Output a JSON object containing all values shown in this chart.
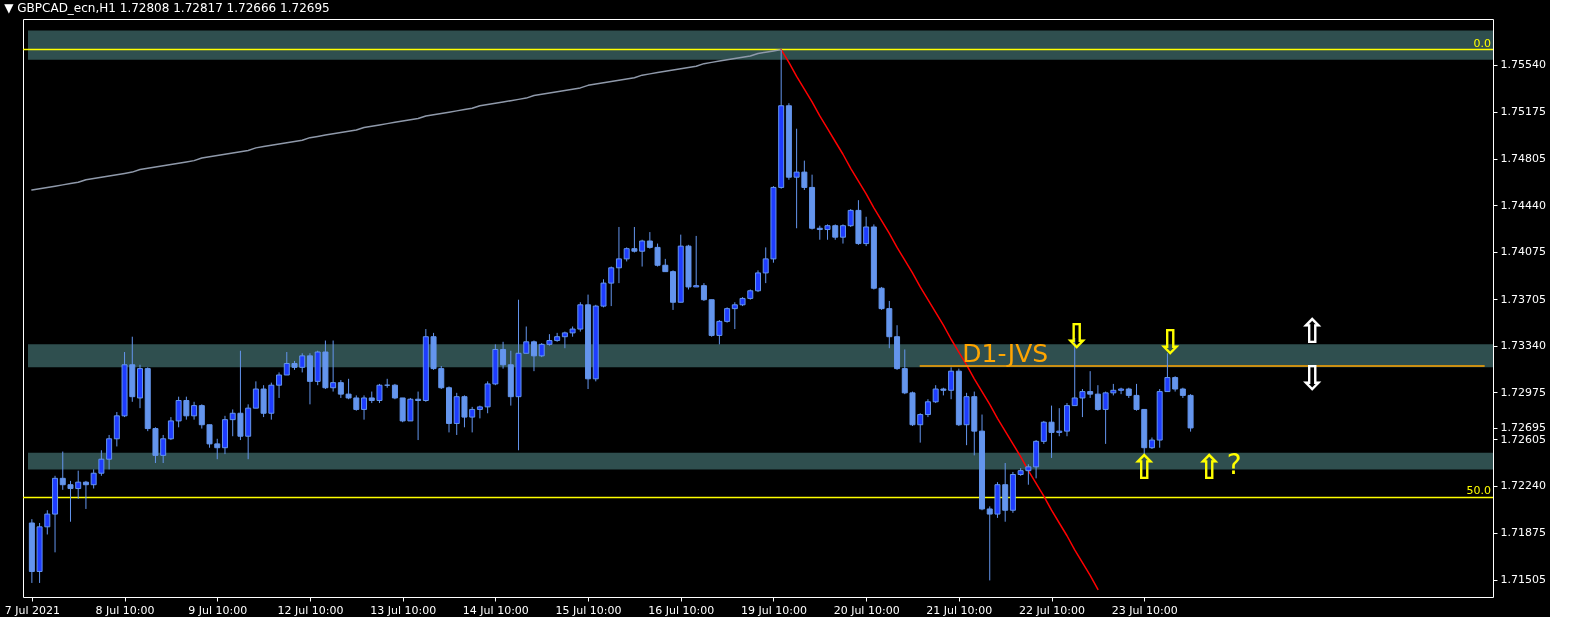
{
  "chart_data": {
    "type": "candlestick",
    "title": "▼ GBPCAD_ecn,H1 1.72808 1.72817 1.72666 1.72695",
    "color": "#6495ed",
    "categories": [
      "7 Jul 2021",
      null,
      null,
      null,
      null,
      null,
      null,
      null,
      null,
      null,
      null,
      null,
      "8 Jul 10:00",
      null,
      null,
      null,
      null,
      null,
      null,
      null,
      null,
      null,
      null,
      null,
      "9 Jul 10:00",
      null,
      null,
      null,
      null,
      null,
      null,
      null,
      null,
      null,
      null,
      null,
      "12 Jul 10:00",
      null,
      null,
      null,
      null,
      null,
      null,
      null,
      null,
      null,
      null,
      null,
      "13 Jul 10:00",
      null,
      null,
      null,
      null,
      null,
      null,
      null,
      null,
      null,
      null,
      null,
      "14 Jul 10:00",
      null,
      null,
      null,
      null,
      null,
      null,
      null,
      null,
      null,
      null,
      null,
      "15 Jul 10:00",
      null,
      null,
      null,
      null,
      null,
      null,
      null,
      null,
      null,
      null,
      null,
      "16 Jul 10:00",
      null,
      null,
      null,
      null,
      null,
      null,
      null,
      null,
      null,
      null,
      null,
      "19 Jul 10:00",
      null,
      null,
      null,
      null,
      null,
      null,
      null,
      null,
      null,
      null,
      null,
      "20 Jul 10:00",
      null,
      null,
      null,
      null,
      null,
      null,
      null,
      null,
      null,
      null,
      null,
      "21 Jul 10:00",
      null,
      null,
      null,
      null,
      null,
      null,
      null,
      null,
      null,
      null,
      null,
      "22 Jul 10:00",
      null,
      null,
      null,
      null,
      null,
      null,
      null,
      null,
      null,
      null,
      null,
      "23 Jul 10:00",
      null,
      null,
      null,
      null,
      null,
      null,
      null,
      null,
      null,
      null,
      null,
      null,
      null,
      null,
      null,
      null,
      null,
      null,
      null,
      null,
      null,
      null,
      null,
      null,
      null,
      null,
      null,
      null,
      null,
      null,
      null,
      null,
      null,
      null,
      null,
      null,
      null,
      null,
      null,
      null,
      null,
      null,
      null,
      null
    ],
    "ohlc": [
      [
        1.7195,
        1.7198,
        1.7148,
        1.7157
      ],
      [
        1.7157,
        1.7195,
        1.7148,
        1.7192
      ],
      [
        1.7192,
        1.7205,
        1.7186,
        1.7202
      ],
      [
        1.7202,
        1.7232,
        1.7172,
        1.723
      ],
      [
        1.723,
        1.7251,
        1.7221,
        1.7225
      ],
      [
        1.7225,
        1.7228,
        1.7196,
        1.7222
      ],
      [
        1.7222,
        1.7236,
        1.7214,
        1.7227
      ],
      [
        1.7227,
        1.7228,
        1.7206,
        1.7225
      ],
      [
        1.7225,
        1.7237,
        1.7222,
        1.7234
      ],
      [
        1.7234,
        1.7252,
        1.7232,
        1.7245
      ],
      [
        1.7245,
        1.7264,
        1.7237,
        1.7261
      ],
      [
        1.7261,
        1.7282,
        1.7255,
        1.7279
      ],
      [
        1.7279,
        1.7329,
        1.7278,
        1.7319
      ],
      [
        1.7319,
        1.7341,
        1.729,
        1.7294
      ],
      [
        1.7293,
        1.7319,
        1.7285,
        1.7316
      ],
      [
        1.7316,
        1.7317,
        1.7267,
        1.7269
      ],
      [
        1.7269,
        1.727,
        1.7242,
        1.7248
      ],
      [
        1.7248,
        1.7264,
        1.7242,
        1.7261
      ],
      [
        1.7261,
        1.7278,
        1.726,
        1.7275
      ],
      [
        1.7275,
        1.7294,
        1.727,
        1.7291
      ],
      [
        1.7291,
        1.7294,
        1.7276,
        1.7279
      ],
      [
        1.7279,
        1.729,
        1.7276,
        1.7287
      ],
      [
        1.7287,
        1.7288,
        1.7269,
        1.7272
      ],
      [
        1.7272,
        1.7272,
        1.7254,
        1.7257
      ],
      [
        1.7257,
        1.7261,
        1.7245,
        1.7254
      ],
      [
        1.7254,
        1.7279,
        1.7249,
        1.7276
      ],
      [
        1.7276,
        1.7284,
        1.7263,
        1.7281
      ],
      [
        1.7281,
        1.733,
        1.726,
        1.7263
      ],
      [
        1.7263,
        1.7288,
        1.7245,
        1.7285
      ],
      [
        1.7285,
        1.7306,
        1.7285,
        1.73
      ],
      [
        1.73,
        1.7303,
        1.7278,
        1.7281
      ],
      [
        1.7281,
        1.7305,
        1.7276,
        1.7303
      ],
      [
        1.7303,
        1.7313,
        1.7293,
        1.7311
      ],
      [
        1.7311,
        1.7329,
        1.7311,
        1.732
      ],
      [
        1.732,
        1.7322,
        1.7315,
        1.7317
      ],
      [
        1.7317,
        1.7328,
        1.7313,
        1.7326
      ],
      [
        1.7326,
        1.7328,
        1.7288,
        1.7306
      ],
      [
        1.7306,
        1.733,
        1.7303,
        1.7329
      ],
      [
        1.7329,
        1.7338,
        1.73,
        1.7301
      ],
      [
        1.7301,
        1.7338,
        1.7298,
        1.7305
      ],
      [
        1.7305,
        1.7307,
        1.7293,
        1.7296
      ],
      [
        1.7296,
        1.7308,
        1.7292,
        1.7293
      ],
      [
        1.7293,
        1.7295,
        1.7283,
        1.7284
      ],
      [
        1.7284,
        1.7295,
        1.7276,
        1.7293
      ],
      [
        1.7293,
        1.7298,
        1.7289,
        1.7291
      ],
      [
        1.7291,
        1.7304,
        1.7289,
        1.7303
      ],
      [
        1.7303,
        1.7308,
        1.7301,
        1.7303
      ],
      [
        1.7303,
        1.7304,
        1.7292,
        1.7293
      ],
      [
        1.7293,
        1.7293,
        1.7274,
        1.7275
      ],
      [
        1.7275,
        1.7293,
        1.7275,
        1.7292
      ],
      [
        1.7292,
        1.7298,
        1.726,
        1.7291
      ],
      [
        1.7291,
        1.7347,
        1.729,
        1.7341
      ],
      [
        1.7341,
        1.7344,
        1.7315,
        1.7316
      ],
      [
        1.7316,
        1.7318,
        1.73,
        1.7301
      ],
      [
        1.7301,
        1.7302,
        1.7266,
        1.7273
      ],
      [
        1.7273,
        1.7297,
        1.7264,
        1.7294
      ],
      [
        1.7294,
        1.7295,
        1.727,
        1.7278
      ],
      [
        1.7278,
        1.7286,
        1.7266,
        1.7284
      ],
      [
        1.7284,
        1.7287,
        1.7277,
        1.7286
      ],
      [
        1.7286,
        1.7306,
        1.7281,
        1.7304
      ],
      [
        1.7304,
        1.7335,
        1.7303,
        1.7331
      ],
      [
        1.7331,
        1.7337,
        1.7316,
        1.7319
      ],
      [
        1.7319,
        1.733,
        1.7287,
        1.7294
      ],
      [
        1.7294,
        1.737,
        1.7252,
        1.7328
      ],
      [
        1.7328,
        1.7349,
        1.7328,
        1.7337
      ],
      [
        1.7337,
        1.7338,
        1.7314,
        1.7326
      ],
      [
        1.7326,
        1.7336,
        1.7325,
        1.7335
      ],
      [
        1.7335,
        1.7343,
        1.7334,
        1.7338
      ],
      [
        1.7338,
        1.7344,
        1.7337,
        1.7341
      ],
      [
        1.7341,
        1.7345,
        1.7332,
        1.7344
      ],
      [
        1.7344,
        1.7349,
        1.7341,
        1.7347
      ],
      [
        1.7347,
        1.7368,
        1.7345,
        1.7366
      ],
      [
        1.7366,
        1.7374,
        1.73,
        1.7308
      ],
      [
        1.7308,
        1.7366,
        1.7306,
        1.7365
      ],
      [
        1.7365,
        1.7386,
        1.7364,
        1.7383
      ],
      [
        1.7383,
        1.7396,
        1.7365,
        1.7395
      ],
      [
        1.7395,
        1.7427,
        1.7383,
        1.7402
      ],
      [
        1.7402,
        1.7411,
        1.74,
        1.741
      ],
      [
        1.741,
        1.7427,
        1.7407,
        1.7408
      ],
      [
        1.7408,
        1.7417,
        1.7396,
        1.7416
      ],
      [
        1.7416,
        1.7423,
        1.741,
        1.7411
      ],
      [
        1.7411,
        1.7414,
        1.7396,
        1.7397
      ],
      [
        1.7397,
        1.7402,
        1.7392,
        1.7392
      ],
      [
        1.7392,
        1.7393,
        1.7362,
        1.7368
      ],
      [
        1.7368,
        1.7421,
        1.7368,
        1.7412
      ],
      [
        1.7412,
        1.7413,
        1.7378,
        1.738
      ],
      [
        1.738,
        1.742,
        1.738,
        1.7381
      ],
      [
        1.7381,
        1.7383,
        1.7369,
        1.737
      ],
      [
        1.737,
        1.737,
        1.7341,
        1.7342
      ],
      [
        1.7342,
        1.7354,
        1.7335,
        1.7353
      ],
      [
        1.7353,
        1.7364,
        1.7352,
        1.7363
      ],
      [
        1.7363,
        1.7368,
        1.7347,
        1.7366
      ],
      [
        1.7366,
        1.7372,
        1.7365,
        1.7371
      ],
      [
        1.7371,
        1.7378,
        1.737,
        1.7377
      ],
      [
        1.7377,
        1.7393,
        1.7376,
        1.7391
      ],
      [
        1.7391,
        1.7411,
        1.7383,
        1.7402
      ],
      [
        1.7402,
        1.7459,
        1.7399,
        1.7458
      ],
      [
        1.7458,
        1.7566,
        1.7457,
        1.7522
      ],
      [
        1.7522,
        1.7524,
        1.7464,
        1.7466
      ],
      [
        1.7466,
        1.7504,
        1.7426,
        1.747
      ],
      [
        1.747,
        1.7479,
        1.7456,
        1.7458
      ],
      [
        1.7458,
        1.7468,
        1.7425,
        1.7426
      ],
      [
        1.7426,
        1.7428,
        1.7417,
        1.7425
      ],
      [
        1.7425,
        1.7429,
        1.7417,
        1.7428
      ],
      [
        1.7428,
        1.7429,
        1.7417,
        1.7419
      ],
      [
        1.7419,
        1.7429,
        1.7414,
        1.7428
      ],
      [
        1.7428,
        1.7441,
        1.7427,
        1.744
      ],
      [
        1.744,
        1.7448,
        1.7413,
        1.7414
      ],
      [
        1.7414,
        1.7435,
        1.7412,
        1.7427
      ],
      [
        1.7427,
        1.7429,
        1.7378,
        1.7379
      ],
      [
        1.7379,
        1.738,
        1.7362,
        1.7363
      ],
      [
        1.7363,
        1.7369,
        1.7332,
        1.7341
      ],
      [
        1.7341,
        1.735,
        1.7315,
        1.7316
      ],
      [
        1.7316,
        1.7331,
        1.7296,
        1.7297
      ],
      [
        1.7297,
        1.7298,
        1.7271,
        1.7272
      ],
      [
        1.7272,
        1.7281,
        1.7258,
        1.728
      ],
      [
        1.728,
        1.7292,
        1.7278,
        1.729
      ],
      [
        1.729,
        1.7303,
        1.7289,
        1.73
      ],
      [
        1.73,
        1.7301,
        1.7295,
        1.7299
      ],
      [
        1.7299,
        1.7317,
        1.7292,
        1.7314
      ],
      [
        1.7314,
        1.7316,
        1.7271,
        1.7272
      ],
      [
        1.7272,
        1.7297,
        1.7256,
        1.7294
      ],
      [
        1.7294,
        1.7298,
        1.7248,
        1.7267
      ],
      [
        1.7267,
        1.728,
        1.7205,
        1.7206
      ],
      [
        1.7206,
        1.7208,
        1.715,
        1.7202
      ],
      [
        1.7202,
        1.7227,
        1.7199,
        1.7225
      ],
      [
        1.7225,
        1.7242,
        1.7196,
        1.7205
      ],
      [
        1.7205,
        1.7235,
        1.7203,
        1.7233
      ],
      [
        1.7233,
        1.7238,
        1.7232,
        1.7236
      ],
      [
        1.7236,
        1.7241,
        1.7225,
        1.7239
      ],
      [
        1.7239,
        1.726,
        1.723,
        1.7259
      ],
      [
        1.7259,
        1.7275,
        1.7257,
        1.7274
      ],
      [
        1.7274,
        1.7287,
        1.7246,
        1.7266
      ],
      [
        1.7266,
        1.7285,
        1.7263,
        1.7267
      ],
      [
        1.7267,
        1.7289,
        1.7263,
        1.7287
      ],
      [
        1.7287,
        1.734,
        1.7287,
        1.7293
      ],
      [
        1.7293,
        1.73,
        1.7278,
        1.7298
      ],
      [
        1.7298,
        1.7314,
        1.7293,
        1.7296
      ],
      [
        1.7296,
        1.7303,
        1.7283,
        1.7284
      ],
      [
        1.7284,
        1.7298,
        1.7257,
        1.7297
      ],
      [
        1.7297,
        1.7304,
        1.7295,
        1.7299
      ],
      [
        1.7299,
        1.7301,
        1.7296,
        1.73
      ],
      [
        1.73,
        1.7301,
        1.7293,
        1.7295
      ],
      [
        1.7295,
        1.7304,
        1.7283,
        1.7284
      ],
      [
        1.7284,
        1.7284,
        1.7248,
        1.7254
      ],
      [
        1.7254,
        1.7262,
        1.7253,
        1.726
      ],
      [
        1.726,
        1.73,
        1.7254,
        1.7298
      ],
      [
        1.7298,
        1.7328,
        1.7298,
        1.7309
      ],
      [
        1.7309,
        1.731,
        1.7298,
        1.73
      ],
      [
        1.73,
        1.7301,
        1.7293,
        1.7295
      ],
      [
        1.7295,
        1.7296,
        1.72666,
        1.72695
      ],
      null,
      null,
      null,
      null,
      null,
      null,
      null,
      null,
      null,
      null,
      null,
      null,
      null,
      null,
      null,
      null,
      null,
      null,
      null,
      null,
      null,
      null,
      null,
      null,
      null,
      null,
      null,
      null,
      null,
      null,
      null,
      null,
      null,
      null,
      null,
      null,
      null,
      null
    ],
    "colors": [
      "#6495ed",
      "#1e3cff",
      "#1e3cff",
      "#1e3cff",
      "#6495ed",
      "#6495ed",
      "#1e3cff",
      "#6495ed",
      "#1e3cff",
      "#1e3cff",
      "#1e3cff",
      "#1e3cff",
      "#1e3cff",
      "#6495ed",
      "#1e3cff",
      "#6495ed",
      "#6495ed",
      "#1e3cff",
      "#1e3cff",
      "#1e3cff",
      "#6495ed",
      "#1e3cff",
      "#6495ed",
      "#6495ed",
      "#6495ed",
      "#1e3cff",
      "#1e3cff",
      "#6495ed",
      "#1e3cff",
      "#1e3cff",
      "#6495ed",
      "#1e3cff",
      "#1e3cff",
      "#1e3cff",
      "#6495ed",
      "#1e3cff",
      "#6495ed",
      "#1e3cff",
      "#6495ed",
      "#1e3cff",
      "#6495ed",
      "#6495ed",
      "#6495ed",
      "#1e3cff",
      "#6495ed",
      "#1e3cff",
      "#6495ed",
      "#6495ed",
      "#6495ed",
      "#1e3cff",
      "#6495ed",
      "#1e3cff",
      "#6495ed",
      "#6495ed",
      "#6495ed",
      "#1e3cff",
      "#6495ed",
      "#1e3cff",
      "#1e3cff",
      "#1e3cff",
      "#1e3cff",
      "#6495ed",
      "#6495ed",
      "#1e3cff",
      "#1e3cff",
      "#6495ed",
      "#1e3cff",
      "#1e3cff",
      "#1e3cff",
      "#1e3cff",
      "#1e3cff",
      "#1e3cff",
      "#6495ed",
      "#1e3cff",
      "#1e3cff",
      "#1e3cff",
      "#1e3cff",
      "#1e3cff",
      "#6495ed",
      "#1e3cff",
      "#6495ed",
      "#6495ed",
      "#6495ed",
      "#6495ed",
      "#1e3cff",
      "#6495ed",
      "#1e3cff",
      "#6495ed",
      "#6495ed",
      "#1e3cff",
      "#1e3cff",
      "#1e3cff",
      "#1e3cff",
      "#1e3cff",
      "#1e3cff",
      "#1e3cff",
      "#1e3cff",
      "#1e3cff",
      "#6495ed",
      "#1e3cff",
      "#6495ed",
      "#6495ed",
      "#6495ed",
      "#1e3cff",
      "#6495ed",
      "#1e3cff",
      "#1e3cff",
      "#6495ed",
      "#1e3cff",
      "#6495ed",
      "#6495ed",
      "#6495ed",
      "#6495ed",
      "#6495ed",
      "#6495ed",
      "#1e3cff",
      "#1e3cff",
      "#1e3cff",
      "#6495ed",
      "#1e3cff",
      "#6495ed",
      "#1e3cff",
      "#6495ed",
      "#6495ed",
      "#6495ed",
      "#1e3cff",
      "#6495ed",
      "#1e3cff",
      "#1e3cff",
      "#1e3cff",
      "#1e3cff",
      "#1e3cff",
      "#6495ed",
      "#1e3cff",
      "#1e3cff",
      "#1e3cff",
      "#1e3cff",
      "#6495ed",
      "#6495ed",
      "#1e3cff",
      "#1e3cff",
      "#1e3cff",
      "#6495ed",
      "#6495ed",
      "#6495ed",
      "#1e3cff",
      "#1e3cff",
      "#1e3cff",
      "#6495ed",
      "#6495ed",
      "#6495ed",
      null,
      null,
      null,
      null,
      null,
      null,
      null,
      null,
      null,
      null,
      null,
      null,
      null,
      null,
      null,
      null,
      null,
      null,
      null,
      null,
      null,
      null,
      null,
      null,
      null,
      null,
      null,
      null,
      null,
      null,
      null,
      null,
      null,
      null,
      null,
      null,
      null,
      null
    ],
    "series": [
      {
        "type": "line",
        "color": "#8f99aa",
        "values": [
          1.7456,
          1.7457,
          1.7458,
          1.7459,
          1.746,
          1.7461,
          1.7462,
          1.7464,
          1.7465,
          1.7466,
          1.7467,
          1.7468,
          1.7469,
          1.747,
          1.7472,
          1.7473,
          1.7474,
          1.7475,
          1.7476,
          1.7477,
          1.7478,
          1.7479,
          1.7481,
          1.7482,
          1.7483,
          1.7484,
          1.7485,
          1.7486,
          1.7487,
          1.7489,
          1.749,
          1.7491,
          1.7492,
          1.7493,
          1.7494,
          1.7495,
          1.7497,
          1.7498,
          1.7499,
          1.75,
          1.7501,
          1.7502,
          1.7503,
          1.7505,
          1.7506,
          1.7507,
          1.7508,
          1.7509,
          1.751,
          1.7511,
          1.7512,
          1.7514,
          1.7515,
          1.7516,
          1.7517,
          1.7518,
          1.7519,
          1.752,
          1.7522,
          1.7523,
          1.7524,
          1.7525,
          1.7526,
          1.7527,
          1.7528,
          1.753,
          1.7531,
          1.7532,
          1.7533,
          1.7534,
          1.7535,
          1.7536,
          1.7538,
          1.7539,
          1.754,
          1.7541,
          1.7542,
          1.7543,
          1.7544,
          1.7546,
          1.7547,
          1.7548,
          1.7549,
          1.755,
          1.7551,
          1.7552,
          1.7553,
          1.7555,
          1.7556,
          1.7557,
          1.7558,
          1.7559,
          1.756,
          1.7561,
          1.7563,
          1.7564,
          1.7565,
          1.7566,
          null,
          null,
          null,
          null,
          null,
          null,
          null,
          null,
          null,
          null,
          null,
          null,
          null,
          null,
          null,
          null,
          null,
          null,
          null,
          null,
          null,
          null,
          null,
          null,
          null,
          null,
          null,
          null,
          null,
          null,
          null,
          null,
          null,
          null,
          null,
          null,
          null,
          null,
          null,
          null,
          null,
          null,
          null,
          null,
          null,
          null,
          null,
          null,
          null,
          null,
          null,
          null,
          null,
          null,
          null,
          null,
          null,
          null,
          null,
          null,
          null,
          null,
          null,
          null,
          null,
          null,
          null,
          null,
          null,
          null,
          null,
          null,
          null,
          null,
          null,
          null,
          null,
          null,
          null,
          null,
          null,
          null,
          null,
          null,
          null,
          null,
          null,
          null,
          null,
          null,
          null
        ]
      },
      {
        "type": "line",
        "color": "#ff0000",
        "values": [
          null,
          null,
          null,
          null,
          null,
          null,
          null,
          null,
          null,
          null,
          null,
          null,
          null,
          null,
          null,
          null,
          null,
          null,
          null,
          null,
          null,
          null,
          null,
          null,
          null,
          null,
          null,
          null,
          null,
          null,
          null,
          null,
          null,
          null,
          null,
          null,
          null,
          null,
          null,
          null,
          null,
          null,
          null,
          null,
          null,
          null,
          null,
          null,
          null,
          null,
          null,
          null,
          null,
          null,
          null,
          null,
          null,
          null,
          null,
          null,
          null,
          null,
          null,
          null,
          null,
          null,
          null,
          null,
          null,
          null,
          null,
          null,
          null,
          null,
          null,
          null,
          null,
          null,
          null,
          null,
          null,
          null,
          null,
          null,
          null,
          null,
          null,
          null,
          null,
          null,
          null,
          null,
          null,
          null,
          null,
          null,
          null,
          1.7566,
          1.7556,
          1.7545,
          1.7535,
          1.7525,
          1.7514,
          1.7504,
          1.7494,
          1.7484,
          1.7473,
          1.7463,
          1.7453,
          1.7442,
          1.7432,
          1.7422,
          1.7411,
          1.7401,
          1.7391,
          1.738,
          1.737,
          1.736,
          1.735,
          1.7339,
          1.7329,
          1.7319,
          1.7308,
          1.7298,
          1.7288,
          1.7277,
          1.7267,
          1.7257,
          1.7247,
          1.7236,
          1.7226,
          1.7216,
          1.7205,
          1.7195,
          1.7185,
          1.7174,
          1.7164,
          1.7154,
          1.7143,
          null,
          null,
          null,
          null,
          null,
          null,
          null,
          null,
          null,
          null,
          null,
          null,
          null,
          null,
          null,
          null,
          null,
          null,
          null,
          null,
          null,
          null,
          null,
          null,
          null,
          null,
          null,
          null,
          null,
          null,
          null,
          null,
          null,
          null,
          null,
          null,
          null,
          null,
          null,
          null,
          null,
          null,
          null,
          null,
          null,
          null,
          null,
          null,
          null,
          null
        ]
      },
      {
        "type": "line",
        "name": "D1-JVS",
        "color": "#ffa500",
        "values": [
          null,
          null,
          null,
          null,
          null,
          null,
          null,
          null,
          null,
          null,
          null,
          null,
          null,
          null,
          null,
          null,
          null,
          null,
          null,
          null,
          null,
          null,
          null,
          null,
          null,
          null,
          null,
          null,
          null,
          null,
          null,
          null,
          null,
          null,
          null,
          null,
          null,
          null,
          null,
          null,
          null,
          null,
          null,
          null,
          null,
          null,
          null,
          null,
          null,
          null,
          null,
          null,
          null,
          null,
          null,
          null,
          null,
          null,
          null,
          null,
          null,
          null,
          null,
          null,
          null,
          null,
          null,
          null,
          null,
          null,
          null,
          null,
          null,
          null,
          null,
          null,
          null,
          null,
          null,
          null,
          null,
          null,
          null,
          null,
          null,
          null,
          null,
          null,
          null,
          null,
          null,
          null,
          null,
          null,
          null,
          null,
          null,
          null,
          null,
          null,
          null,
          null,
          null,
          null,
          null,
          null,
          null,
          null,
          null,
          null,
          null,
          null,
          null,
          null,
          null,
          1.7318,
          1.7318,
          1.7318,
          1.7318,
          1.7318,
          1.7318,
          1.7318,
          1.7318,
          1.7318,
          1.7318,
          1.7318,
          1.7318,
          1.7318,
          1.7318,
          1.7318,
          1.7318,
          1.7318,
          1.7318,
          1.7318,
          1.7318,
          1.7318,
          1.7318,
          1.7318,
          1.7318,
          1.7318,
          1.7318,
          1.7318,
          1.7318,
          1.7318,
          1.7318,
          1.7318,
          1.7318,
          1.7318,
          1.7318,
          1.7318,
          1.7318,
          1.7318,
          1.7318,
          1.7318,
          1.7318,
          1.7318,
          1.7318,
          1.7318,
          1.7318,
          1.7318,
          1.7318,
          1.7318,
          1.7318,
          1.7318,
          1.7318,
          1.7318,
          1.7318,
          1.7318,
          1.7318,
          1.7318,
          1.7318,
          1.7318,
          1.7318,
          1.7318,
          1.7318,
          1.7318,
          1.7318,
          1.7318,
          1.7318,
          1.7318,
          1.7318,
          1.7318,
          1.7318,
          1.7318,
          1.7318,
          1.7318,
          1.7318,
          1.7318,
          1.7318
        ]
      }
    ],
    "ylim": [
      1.7137,
      1.759
    ],
    "yticks": [
      {
        "value": 1.7554,
        "label": "1.75540"
      },
      1.75175,
      1.74805,
      {
        "value": 1.7444,
        "label": "1.74440"
      },
      1.74075,
      1.73705,
      {
        "value": 1.7334,
        "label": "1.73340"
      },
      1.72975,
      1.72695,
      1.72605,
      {
        "value": 1.7224,
        "label": "1.72240"
      },
      1.71875,
      1.71505
    ],
    "grid": false,
    "ref_lines": [
      {
        "axis": "y",
        "value": 1.7566,
        "color": "#ffff00"
      },
      {
        "axis": "y",
        "value": 1.7215,
        "color": "#ffff00"
      }
    ],
    "bands": [
      {
        "axis": "y",
        "from": 1.7558,
        "to": 1.7581,
        "color": "#2f4f4f"
      },
      {
        "axis": "y",
        "from": 1.7317,
        "to": 1.7335,
        "color": "#2f4f4f"
      },
      {
        "axis": "y",
        "from": 1.7237,
        "to": 1.725,
        "color": "#2f4f4f"
      }
    ],
    "annotations": [
      {
        "text": "0.0",
        "y": 1.7566
      },
      {
        "text": "50.0",
        "y": 1.7215
      },
      {
        "text": "⇩",
        "y": 1.734
      },
      {
        "text": "⇩",
        "y": 1.7335
      },
      {
        "text": "⇧",
        "x": "23 Jul 10:00",
        "y": 1.7237
      },
      {
        "text": "⇧",
        "y": 1.7237
      },
      {
        "text": "?",
        "y": 1.724
      },
      "⇧",
      "⇩"
    ]
  }
}
